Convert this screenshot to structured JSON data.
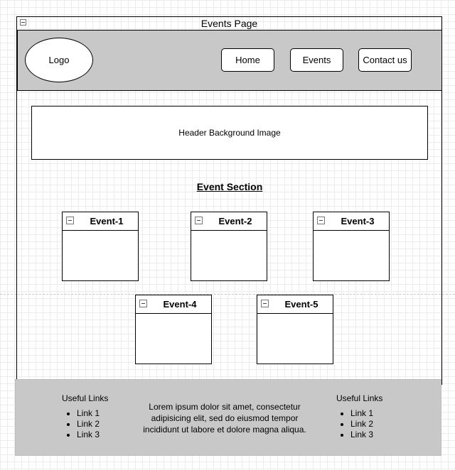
{
  "page": {
    "title": "Events Page"
  },
  "navbar": {
    "logo": "Logo",
    "links": [
      "Home",
      "Events",
      "Contact us"
    ]
  },
  "hero": {
    "label": "Header Background Image"
  },
  "events": {
    "title": "Event Section",
    "items": [
      "Event-1",
      "Event-2",
      "Event-3",
      "Event-4",
      "Event-5"
    ]
  },
  "footer": {
    "left": {
      "title": "Useful Links",
      "links": [
        "Link 1",
        "Link 2",
        "Link 3"
      ]
    },
    "text_lines": [
      "Lorem ipsum dolor sit amet, consectetur",
      "adipisicing elit, sed do eiusmod tempor",
      "incididunt ut labore et dolore magna aliqua."
    ],
    "right": {
      "title": "Useful Links",
      "links": [
        "Link 1",
        "Link 2",
        "Link 3"
      ]
    }
  }
}
